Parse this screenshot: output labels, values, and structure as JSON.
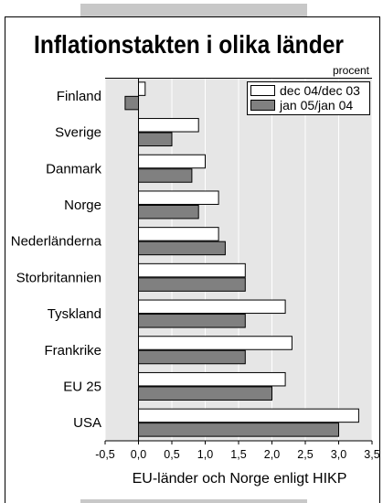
{
  "chart_data": {
    "type": "bar",
    "orientation": "horizontal",
    "title": "Inflationstakten i olika länder",
    "unit_label": "procent",
    "xlabel": "EU-länder och Norge enligt HIKP",
    "categories": [
      "Finland",
      "Sverige",
      "Danmark",
      "Norge",
      "Nederländerna",
      "Storbritannien",
      "Tyskland",
      "Frankrike",
      "EU 25",
      "USA"
    ],
    "series": [
      {
        "name": "dec 04/dec 03",
        "color": "#ffffff",
        "values": [
          0.1,
          0.9,
          1.0,
          1.2,
          1.2,
          1.6,
          2.2,
          2.3,
          2.2,
          3.3
        ]
      },
      {
        "name": "jan 05/jan 04",
        "color": "#808080",
        "values": [
          -0.2,
          0.5,
          0.8,
          0.9,
          1.3,
          1.6,
          1.6,
          1.6,
          2.0,
          3.0
        ]
      }
    ],
    "xlim": [
      -0.5,
      3.5
    ],
    "xticks": [
      -0.5,
      0.0,
      0.5,
      1.0,
      1.5,
      2.0,
      2.5,
      3.0,
      3.5
    ],
    "xtick_labels": [
      "-0,5",
      "0,0",
      "0,5",
      "1,0",
      "1,5",
      "2,0",
      "2,5",
      "3,0",
      "3,5"
    ],
    "grid": true,
    "legend_position": "top-right"
  },
  "colors": {
    "plot_background": "#e6e6e6",
    "gridline": "#ffffff",
    "band": "#c8c8c8",
    "axis": "#000000"
  }
}
